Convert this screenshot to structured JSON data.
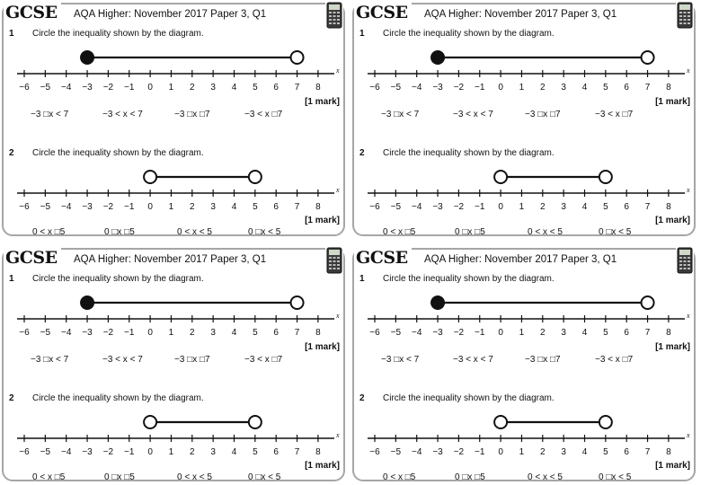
{
  "cards": [
    {
      "logo": "GCSE",
      "title": "AQA Higher: November 2017 Paper 3, Q1",
      "icon": "calculator-icon",
      "questions": [
        {
          "number": "1",
          "prompt": "Circle the inequality shown by the diagram.",
          "axis_var": "x",
          "ticks": [
            "−6",
            "−5",
            "−4",
            "−3",
            "−2",
            "−1",
            "0",
            "1",
            "2",
            "3",
            "4",
            "5",
            "6",
            "7",
            "8"
          ],
          "interval": {
            "start": -3,
            "start_closed": true,
            "end": 7,
            "end_closed": false
          },
          "marks": "[1 mark]",
          "options": [
            "−3 □x < 7",
            "−3 < x < 7",
            "−3 □x □7",
            "−3 < x □7"
          ]
        },
        {
          "number": "2",
          "prompt": "Circle the inequality shown by the diagram.",
          "axis_var": "x",
          "ticks": [
            "−6",
            "−5",
            "−4",
            "−3",
            "−2",
            "−1",
            "0",
            "1",
            "2",
            "3",
            "4",
            "5",
            "6",
            "7",
            "8"
          ],
          "interval": {
            "start": 0,
            "start_closed": false,
            "end": 5,
            "end_closed": false
          },
          "marks": "[1 mark]",
          "options": [
            "0 < x □5",
            "0 □x □5",
            "0 < x < 5",
            "0 □x < 5"
          ]
        }
      ]
    },
    {
      "logo": "GCSE",
      "title": "AQA Higher: November 2017 Paper 3, Q1",
      "icon": "calculator-icon",
      "questions": [
        {
          "number": "1",
          "prompt": "Circle the inequality shown by the diagram.",
          "axis_var": "x",
          "ticks": [
            "−6",
            "−5",
            "−4",
            "−3",
            "−2",
            "−1",
            "0",
            "1",
            "2",
            "3",
            "4",
            "5",
            "6",
            "7",
            "8"
          ],
          "interval": {
            "start": -3,
            "start_closed": true,
            "end": 7,
            "end_closed": false
          },
          "marks": "[1 mark]",
          "options": [
            "−3 □x < 7",
            "−3 < x < 7",
            "−3 □x □7",
            "−3 < x □7"
          ]
        },
        {
          "number": "2",
          "prompt": "Circle the inequality shown by the diagram.",
          "axis_var": "x",
          "ticks": [
            "−6",
            "−5",
            "−4",
            "−3",
            "−2",
            "−1",
            "0",
            "1",
            "2",
            "3",
            "4",
            "5",
            "6",
            "7",
            "8"
          ],
          "interval": {
            "start": 0,
            "start_closed": false,
            "end": 5,
            "end_closed": false
          },
          "marks": "[1 mark]",
          "options": [
            "0 < x □5",
            "0 □x □5",
            "0 < x < 5",
            "0 □x < 5"
          ]
        }
      ]
    },
    {
      "logo": "GCSE",
      "title": "AQA Higher: November 2017 Paper 3, Q1",
      "icon": "calculator-icon",
      "questions": [
        {
          "number": "1",
          "prompt": "Circle the inequality shown by the diagram.",
          "axis_var": "x",
          "ticks": [
            "−6",
            "−5",
            "−4",
            "−3",
            "−2",
            "−1",
            "0",
            "1",
            "2",
            "3",
            "4",
            "5",
            "6",
            "7",
            "8"
          ],
          "interval": {
            "start": -3,
            "start_closed": true,
            "end": 7,
            "end_closed": false
          },
          "marks": "[1 mark]",
          "options": [
            "−3 □x < 7",
            "−3 < x < 7",
            "−3 □x □7",
            "−3 < x □7"
          ]
        },
        {
          "number": "2",
          "prompt": "Circle the inequality shown by the diagram.",
          "axis_var": "x",
          "ticks": [
            "−6",
            "−5",
            "−4",
            "−3",
            "−2",
            "−1",
            "0",
            "1",
            "2",
            "3",
            "4",
            "5",
            "6",
            "7",
            "8"
          ],
          "interval": {
            "start": 0,
            "start_closed": false,
            "end": 5,
            "end_closed": false
          },
          "marks": "[1 mark]",
          "options": [
            "0 < x □5",
            "0 □x □5",
            "0 < x < 5",
            "0 □x < 5"
          ]
        }
      ]
    },
    {
      "logo": "GCSE",
      "title": "AQA Higher: November 2017 Paper 3, Q1",
      "icon": "calculator-icon",
      "questions": [
        {
          "number": "1",
          "prompt": "Circle the inequality shown by the diagram.",
          "axis_var": "x",
          "ticks": [
            "−6",
            "−5",
            "−4",
            "−3",
            "−2",
            "−1",
            "0",
            "1",
            "2",
            "3",
            "4",
            "5",
            "6",
            "7",
            "8"
          ],
          "interval": {
            "start": -3,
            "start_closed": true,
            "end": 7,
            "end_closed": false
          },
          "marks": "[1 mark]",
          "options": [
            "−3 □x < 7",
            "−3 < x < 7",
            "−3 □x □7",
            "−3 < x □7"
          ]
        },
        {
          "number": "2",
          "prompt": "Circle the inequality shown by the diagram.",
          "axis_var": "x",
          "ticks": [
            "−6",
            "−5",
            "−4",
            "−3",
            "−2",
            "−1",
            "0",
            "1",
            "2",
            "3",
            "4",
            "5",
            "6",
            "7",
            "8"
          ],
          "interval": {
            "start": 0,
            "start_closed": false,
            "end": 5,
            "end_closed": false
          },
          "marks": "[1 mark]",
          "options": [
            "0 < x □5",
            "0 □x □5",
            "0 < x < 5",
            "0 □x < 5"
          ]
        }
      ]
    }
  ]
}
